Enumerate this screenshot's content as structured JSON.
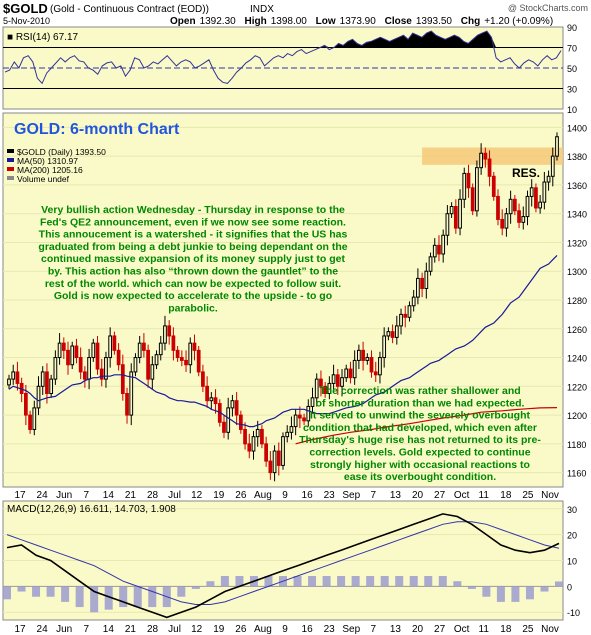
{
  "header": {
    "symbol": "$GOLD",
    "name": "(Gold - Continuous Contract (EOD))",
    "exchange": "INDX",
    "watermark": "@ StockCharts.com",
    "date": "5-Nov-2010",
    "open_label": "Open",
    "open": "1392.30",
    "high_label": "High",
    "high": "1398.00",
    "low_label": "Low",
    "low": "1373.90",
    "close_label": "Close",
    "close": "1393.50",
    "chg_label": "Chg",
    "chg": "+1.20 (+0.09%)"
  },
  "colors": {
    "panel_bg": "#fafac8",
    "up_candle": "#000000",
    "down_candle": "#cc0000",
    "ma50": "#1a1a99",
    "ma200": "#cc0000",
    "rsi_fill": "#000000",
    "annotation_green": "#008800",
    "title_blue": "#2255dd",
    "resistance": "#f5c878"
  },
  "chart_data": [
    {
      "panel": "rsi",
      "type": "line",
      "label": "RSI(14) 67.17",
      "ylim": [
        10,
        90
      ],
      "yticks": [
        90,
        70,
        50,
        30,
        10
      ],
      "reference_lines": [
        70,
        50,
        30
      ],
      "values": [
        46,
        48,
        56,
        50,
        60,
        62,
        56,
        40,
        35,
        45,
        50,
        55,
        60,
        56,
        60,
        62,
        57,
        56,
        50,
        48,
        44,
        52,
        55,
        56,
        50,
        52,
        42,
        48,
        60,
        58,
        50,
        52,
        56,
        54,
        58,
        62,
        57,
        52,
        56,
        58,
        56,
        50,
        52,
        55,
        58,
        48,
        40,
        36,
        35,
        40,
        46,
        50,
        55,
        58,
        62,
        60,
        52,
        56,
        60,
        62,
        60,
        64,
        62,
        66,
        68,
        64,
        66,
        68,
        70,
        72,
        68,
        70,
        74,
        72,
        76,
        78,
        74,
        72,
        75,
        76,
        78,
        80,
        78,
        76,
        78,
        80,
        82,
        78,
        84,
        82,
        80,
        84,
        86,
        82,
        80,
        78,
        80,
        82,
        80,
        76,
        74,
        78,
        82,
        84,
        86,
        80,
        60,
        56,
        58,
        60,
        54,
        50,
        55,
        58,
        56,
        52,
        58,
        62,
        58,
        60,
        67
      ]
    },
    {
      "panel": "price",
      "type": "candlestick",
      "title": "GOLD: 6-month Chart",
      "legend": [
        {
          "label": "$GOLD (Daily) 1393.50",
          "color": "#000000"
        },
        {
          "label": "MA(50) 1310.97",
          "color": "#1a1a99"
        },
        {
          "label": "MA(200) 1205.16",
          "color": "#cc0000"
        },
        {
          "label": "Volume undef",
          "color": "#888888"
        }
      ],
      "ylim": [
        1150,
        1410
      ],
      "yticks": [
        1400,
        1380,
        1360,
        1340,
        1320,
        1300,
        1280,
        1260,
        1240,
        1220,
        1200,
        1180,
        1160
      ],
      "close": [
        1225,
        1230,
        1222,
        1215,
        1200,
        1190,
        1205,
        1220,
        1230,
        1215,
        1225,
        1240,
        1250,
        1245,
        1235,
        1248,
        1240,
        1230,
        1225,
        1240,
        1250,
        1232,
        1225,
        1240,
        1255,
        1245,
        1235,
        1215,
        1200,
        1230,
        1240,
        1250,
        1245,
        1225,
        1235,
        1242,
        1250,
        1262,
        1255,
        1245,
        1240,
        1238,
        1235,
        1250,
        1245,
        1230,
        1220,
        1210,
        1212,
        1208,
        1195,
        1188,
        1205,
        1210,
        1200,
        1190,
        1180,
        1175,
        1185,
        1190,
        1180,
        1168,
        1160,
        1175,
        1165,
        1185,
        1188,
        1192,
        1200,
        1198,
        1196,
        1206,
        1212,
        1225,
        1220,
        1215,
        1222,
        1228,
        1220,
        1226,
        1232,
        1226,
        1238,
        1245,
        1238,
        1240,
        1230,
        1228,
        1240,
        1255,
        1258,
        1254,
        1262,
        1270,
        1268,
        1276,
        1282,
        1295,
        1288,
        1300,
        1310,
        1318,
        1312,
        1325,
        1340,
        1345,
        1330,
        1350,
        1368,
        1358,
        1342,
        1372,
        1382,
        1378,
        1366,
        1352,
        1336,
        1330,
        1340,
        1350,
        1342,
        1334,
        1338,
        1352,
        1358,
        1344,
        1348,
        1362,
        1366,
        1380,
        1393.5
      ],
      "ma50": [
        1218,
        1220,
        1219,
        1217,
        1215,
        1212,
        1210,
        1211,
        1212,
        1213,
        1215,
        1217,
        1219,
        1221,
        1222,
        1224,
        1225,
        1226,
        1226,
        1227,
        1227,
        1228,
        1228,
        1228,
        1227,
        1226,
        1224,
        1222,
        1220,
        1218,
        1216,
        1214,
        1212,
        1211,
        1210,
        1210,
        1209,
        1209,
        1208,
        1207,
        1206,
        1204,
        1202,
        1200,
        1198,
        1196,
        1194,
        1193,
        1192,
        1192,
        1193,
        1194,
        1196,
        1198,
        1200,
        1202,
        1203,
        1204,
        1204,
        1204,
        1203,
        1202,
        1201,
        1201,
        1201,
        1202,
        1203,
        1204,
        1205,
        1206,
        1207,
        1208,
        1210,
        1212,
        1214,
        1216,
        1218,
        1220,
        1222,
        1224,
        1226,
        1228,
        1230,
        1232,
        1234,
        1236,
        1238,
        1240,
        1242,
        1244,
        1246,
        1248,
        1250,
        1252,
        1255,
        1258,
        1261,
        1264,
        1267,
        1270,
        1274,
        1278,
        1282,
        1286,
        1290,
        1294,
        1298,
        1302,
        1305,
        1308,
        1311
      ],
      "ma200": [
        1180,
        1183,
        1186,
        1188,
        1190,
        1192,
        1194,
        1196,
        1198,
        1200,
        1202,
        1203,
        1204,
        1205,
        1205.2
      ]
    },
    {
      "panel": "macd",
      "type": "line",
      "label": "MACD(12,26,9) 16.611, 14.703, 1.908",
      "ylim": [
        -13,
        33
      ],
      "yticks": [
        30,
        20,
        10,
        0,
        -10
      ],
      "macd": [
        15,
        16,
        12,
        10,
        6,
        2,
        -2,
        -4,
        -6,
        -8,
        -10,
        -12,
        -10,
        -8,
        -5,
        -2,
        0,
        2,
        4,
        6,
        8,
        10,
        12,
        14,
        16,
        18,
        20,
        22,
        24,
        26,
        28,
        27,
        24,
        20,
        16,
        14,
        13,
        14,
        16.6
      ],
      "signal": [
        20,
        18,
        16,
        14,
        12,
        10,
        8,
        5,
        2,
        0,
        -2,
        -4,
        -6,
        -7,
        -7,
        -6,
        -4,
        -2,
        0,
        2,
        4,
        6,
        8,
        10,
        12,
        14,
        16,
        18,
        20,
        22,
        24,
        25,
        25,
        24,
        22,
        20,
        18,
        16,
        14.7
      ]
    }
  ],
  "xaxis": {
    "labels": [
      "17",
      "24",
      "Jun",
      "7",
      "14",
      "21",
      "28",
      "Jul",
      "12",
      "19",
      "26",
      "Aug",
      "9",
      "16",
      "23",
      "Sep",
      "7",
      "13",
      "20",
      "27",
      "Oct",
      "11",
      "18",
      "25",
      "Nov"
    ]
  },
  "annotations": {
    "title": "GOLD: 6-month Chart",
    "resistance_label": "RES.",
    "note1": [
      "Very bullish action Wednesday - Thursday in response to the",
      "Fed's QE2 announcement, even if we now see some reaction.",
      "This annoucement is a watershed - it signifies that the US has",
      "graduated from being a debt junkie to being dependant on the",
      "continued massive expansion of its money supply just to get",
      "by. This action has also “thrown down the gauntlet” to the",
      "rest of the world. which can now be expected to follow suit.",
      "Gold is now expected to accelerate to the upside - to go",
      "parabolic."
    ],
    "note2": [
      "The correction was rather shallower and",
      "of shorter duration than we had expected.",
      "It served to unwind the severely overbought",
      "condition that had developed, which even after",
      "Thursday's huge rise has not returned to its pre-",
      "correction levels. Gold expected to continue",
      "strongly higher with occasional reactions to",
      "ease its overbought condition."
    ]
  }
}
